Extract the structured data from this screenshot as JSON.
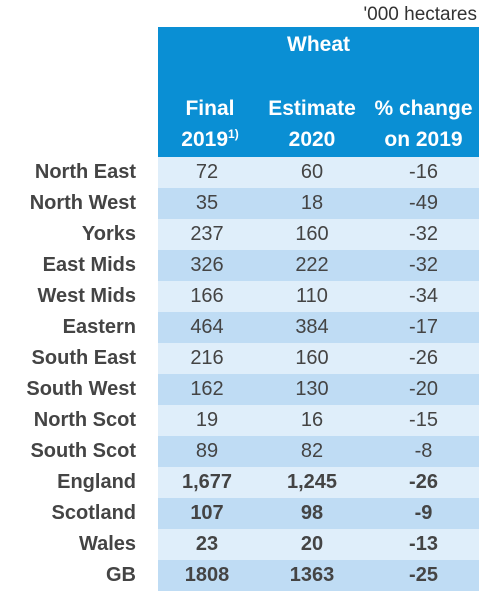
{
  "unit_label": "'000 hectares",
  "header": {
    "title": "Wheat",
    "col1_line1": "Final",
    "col1_line2": "2019",
    "col1_sup": "1)",
    "col2_line1": "Estimate",
    "col2_line2": "2020",
    "col3_line1": "% change",
    "col3_line2": "on 2019"
  },
  "rows": [
    {
      "region": "North East",
      "final": "72",
      "estimate": "60",
      "change": "-16"
    },
    {
      "region": "North West",
      "final": "35",
      "estimate": "18",
      "change": "-49"
    },
    {
      "region": "Yorks",
      "final": "237",
      "estimate": "160",
      "change": "-32"
    },
    {
      "region": "East Mids",
      "final": "326",
      "estimate": "222",
      "change": "-32"
    },
    {
      "region": "West Mids",
      "final": "166",
      "estimate": "110",
      "change": "-34"
    },
    {
      "region": "Eastern",
      "final": "464",
      "estimate": "384",
      "change": "-17"
    },
    {
      "region": "South East",
      "final": "216",
      "estimate": "160",
      "change": "-26"
    },
    {
      "region": "South West",
      "final": "162",
      "estimate": "130",
      "change": "-20"
    },
    {
      "region": "North Scot",
      "final": "19",
      "estimate": "16",
      "change": "-15"
    },
    {
      "region": "South Scot",
      "final": "89",
      "estimate": "82",
      "change": "-8"
    },
    {
      "region": "England",
      "final": "1,677",
      "estimate": "1,245",
      "change": "-26"
    },
    {
      "region": "Scotland",
      "final": "107",
      "estimate": "98",
      "change": "-9"
    },
    {
      "region": "Wales",
      "final": "23",
      "estimate": "20",
      "change": "-13"
    },
    {
      "region": "GB",
      "final": "1808",
      "estimate": "1363",
      "change": "-25"
    }
  ],
  "colors": {
    "header_bg": "#0a8fd4",
    "row_light": "#dfeefa",
    "row_dark": "#bfdcf4",
    "negative": "#e00000"
  }
}
